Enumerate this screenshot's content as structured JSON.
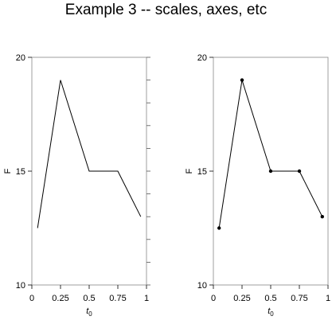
{
  "title": "Example 3 -- scales, axes, etc",
  "chart_data": [
    {
      "type": "line",
      "x": [
        0.05,
        0.25,
        0.5,
        0.75,
        0.95
      ],
      "y": [
        12.5,
        19,
        15,
        15,
        13
      ],
      "xlim": [
        0,
        1
      ],
      "ylim": [
        10,
        20
      ],
      "xticks": [
        "0",
        "0.25",
        "0.5",
        "0.75",
        "1"
      ],
      "yticks": [
        "10",
        "15",
        "20"
      ],
      "xlabel_base": "t",
      "xlabel_sub": "0",
      "ylabel": "F",
      "markers": false,
      "frame": "full",
      "right_ticks": true
    },
    {
      "type": "line",
      "x": [
        0.05,
        0.25,
        0.5,
        0.75,
        0.95
      ],
      "y": [
        12.5,
        19,
        15,
        15,
        13
      ],
      "xlim": [
        0,
        1
      ],
      "ylim": [
        10,
        20
      ],
      "xticks": [
        "0",
        "0.25",
        "0.5",
        "0.75",
        "1"
      ],
      "yticks": [
        "10",
        "15",
        "20"
      ],
      "xlabel_base": "t",
      "xlabel_sub": "0",
      "ylabel": "F",
      "markers": true,
      "frame": "full",
      "right_ticks": false
    }
  ]
}
